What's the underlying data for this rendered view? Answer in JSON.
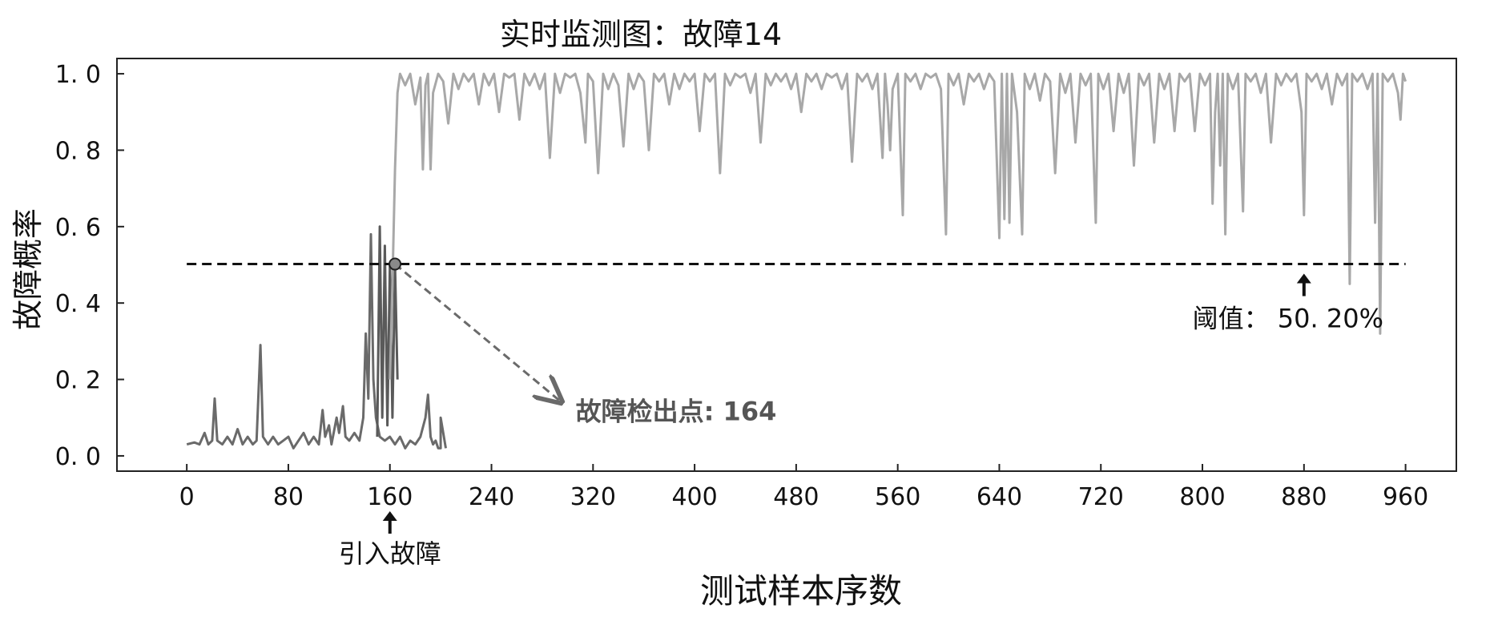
{
  "chart_data": {
    "type": "line",
    "title": "实时监测图：故障14",
    "xlabel": "测试样本序数",
    "ylabel": "故障概率",
    "xlim": [
      -55,
      1000
    ],
    "ylim": [
      -0.04,
      1.04
    ],
    "grid": false,
    "x_ticks": [
      0,
      80,
      160,
      240,
      320,
      400,
      480,
      560,
      640,
      720,
      800,
      880,
      960
    ],
    "y_ticks": [
      0.0,
      0.2,
      0.4,
      0.6,
      0.8,
      1.0
    ],
    "y_tick_labels": [
      "0. 0",
      "0. 2",
      "0. 4",
      "0. 6",
      "0. 8",
      "1. 0"
    ],
    "threshold": {
      "value": 0.502,
      "x_range": [
        0,
        960
      ],
      "label": "阈值： 50. 20%",
      "arrow_x": 880
    },
    "fault_injection": {
      "x": 160,
      "label": "引入故障"
    },
    "detection": {
      "x": 164,
      "y": 0.502,
      "label": "故障检出点: 164",
      "label_x": 300,
      "label_y": 0.12
    },
    "series": [
      {
        "segment": "before-fault",
        "color": "#6a6a6a",
        "points": [
          [
            0,
            0.03
          ],
          [
            6,
            0.035
          ],
          [
            10,
            0.03
          ],
          [
            14,
            0.06
          ],
          [
            17,
            0.03
          ],
          [
            20,
            0.04
          ],
          [
            22,
            0.15
          ],
          [
            24,
            0.04
          ],
          [
            28,
            0.03
          ],
          [
            32,
            0.05
          ],
          [
            36,
            0.03
          ],
          [
            40,
            0.07
          ],
          [
            44,
            0.03
          ],
          [
            48,
            0.05
          ],
          [
            52,
            0.03
          ],
          [
            55,
            0.04
          ],
          [
            58,
            0.29
          ],
          [
            60,
            0.05
          ],
          [
            64,
            0.03
          ],
          [
            68,
            0.05
          ],
          [
            72,
            0.03
          ],
          [
            76,
            0.04
          ],
          [
            80,
            0.05
          ],
          [
            84,
            0.02
          ],
          [
            88,
            0.04
          ],
          [
            92,
            0.06
          ],
          [
            96,
            0.03
          ],
          [
            100,
            0.05
          ],
          [
            104,
            0.03
          ],
          [
            107,
            0.12
          ],
          [
            109,
            0.05
          ],
          [
            112,
            0.08
          ],
          [
            114,
            0.03
          ],
          [
            118,
            0.1
          ],
          [
            120,
            0.06
          ],
          [
            123,
            0.13
          ],
          [
            125,
            0.05
          ],
          [
            128,
            0.04
          ],
          [
            132,
            0.06
          ],
          [
            136,
            0.04
          ],
          [
            139,
            0.1
          ],
          [
            141,
            0.32
          ],
          [
            143,
            0.15
          ],
          [
            145,
            0.58
          ],
          [
            147,
            0.2
          ],
          [
            149,
            0.1
          ],
          [
            152,
            0.05
          ],
          [
            156,
            0.04
          ],
          [
            160,
            0.05
          ],
          [
            164,
            0.03
          ],
          [
            168,
            0.05
          ],
          [
            172,
            0.02
          ],
          [
            176,
            0.04
          ],
          [
            180,
            0.03
          ],
          [
            184,
            0.05
          ],
          [
            188,
            0.1
          ],
          [
            190,
            0.16
          ],
          [
            192,
            0.05
          ],
          [
            194,
            0.03
          ],
          [
            196,
            0.04
          ],
          [
            198,
            0.02
          ],
          [
            200,
            0.02
          ],
          [
            200,
            0.1
          ],
          [
            202,
            0.06
          ],
          [
            204,
            0.02
          ]
        ]
      },
      {
        "segment": "dense-segment",
        "color": "#5a5a5a",
        "points": [
          [
            150,
            0.05
          ],
          [
            152,
            0.6
          ],
          [
            154,
            0.1
          ],
          [
            156,
            0.55
          ],
          [
            158,
            0.08
          ],
          [
            160,
            0.5
          ],
          [
            162,
            0.1
          ],
          [
            164,
            0.5
          ],
          [
            166,
            0.2
          ]
        ]
      },
      {
        "segment": "after-fault",
        "color": "#a8a8a8",
        "points": [
          [
            160,
            0.2
          ],
          [
            162,
            0.45
          ],
          [
            164,
            0.75
          ],
          [
            166,
            0.95
          ],
          [
            168,
            1.0
          ],
          [
            172,
            0.97
          ],
          [
            176,
            1.0
          ],
          [
            180,
            0.92
          ],
          [
            184,
            0.99
          ],
          [
            186,
            0.75
          ],
          [
            188,
            0.97
          ],
          [
            190,
            1.0
          ],
          [
            192,
            0.75
          ],
          [
            194,
            0.95
          ],
          [
            198,
            1.0
          ],
          [
            202,
            0.98
          ],
          [
            206,
            0.87
          ],
          [
            210,
            1.0
          ],
          [
            214,
            0.96
          ],
          [
            218,
            1.0
          ],
          [
            222,
            0.98
          ],
          [
            226,
            1.0
          ],
          [
            230,
            0.92
          ],
          [
            234,
            1.0
          ],
          [
            238,
            0.97
          ],
          [
            242,
            1.0
          ],
          [
            246,
            0.9
          ],
          [
            250,
            1.0
          ],
          [
            254,
            0.99
          ],
          [
            258,
            1.0
          ],
          [
            262,
            0.88
          ],
          [
            266,
            1.0
          ],
          [
            270,
            0.97
          ],
          [
            274,
            1.0
          ],
          [
            278,
            0.96
          ],
          [
            282,
            1.0
          ],
          [
            286,
            0.78
          ],
          [
            290,
            1.0
          ],
          [
            294,
            0.95
          ],
          [
            298,
            1.0
          ],
          [
            302,
            0.99
          ],
          [
            306,
            1.0
          ],
          [
            310,
            0.95
          ],
          [
            314,
            0.82
          ],
          [
            316,
            1.0
          ],
          [
            320,
            0.98
          ],
          [
            324,
            0.74
          ],
          [
            328,
            1.0
          ],
          [
            332,
            0.96
          ],
          [
            336,
            1.0
          ],
          [
            340,
            0.97
          ],
          [
            344,
            0.81
          ],
          [
            348,
            1.0
          ],
          [
            352,
            0.96
          ],
          [
            356,
            1.0
          ],
          [
            360,
            0.98
          ],
          [
            364,
            0.8
          ],
          [
            368,
            1.0
          ],
          [
            372,
            0.98
          ],
          [
            376,
            1.0
          ],
          [
            380,
            0.92
          ],
          [
            384,
            1.0
          ],
          [
            388,
            0.96
          ],
          [
            392,
            1.0
          ],
          [
            396,
            0.98
          ],
          [
            400,
            1.0
          ],
          [
            404,
            0.85
          ],
          [
            408,
            1.0
          ],
          [
            412,
            0.98
          ],
          [
            416,
            1.0
          ],
          [
            420,
            0.74
          ],
          [
            424,
            1.0
          ],
          [
            428,
            0.97
          ],
          [
            432,
            1.0
          ],
          [
            436,
            0.99
          ],
          [
            440,
            1.0
          ],
          [
            444,
            0.95
          ],
          [
            448,
            1.0
          ],
          [
            452,
            0.82
          ],
          [
            456,
            1.0
          ],
          [
            460,
            0.97
          ],
          [
            464,
            1.0
          ],
          [
            468,
            0.98
          ],
          [
            472,
            1.0
          ],
          [
            476,
            0.96
          ],
          [
            480,
            1.0
          ],
          [
            484,
            0.9
          ],
          [
            488,
            1.0
          ],
          [
            492,
            0.98
          ],
          [
            496,
            1.0
          ],
          [
            500,
            0.96
          ],
          [
            504,
            1.0
          ],
          [
            508,
            0.99
          ],
          [
            512,
            1.0
          ],
          [
            516,
            0.96
          ],
          [
            520,
            1.0
          ],
          [
            524,
            0.77
          ],
          [
            528,
            1.0
          ],
          [
            532,
            0.98
          ],
          [
            536,
            1.0
          ],
          [
            540,
            0.96
          ],
          [
            544,
            1.0
          ],
          [
            548,
            0.78
          ],
          [
            550,
            1.0
          ],
          [
            552,
            0.92
          ],
          [
            554,
            0.8
          ],
          [
            556,
            0.96
          ],
          [
            560,
            1.0
          ],
          [
            564,
            0.63
          ],
          [
            566,
            1.0
          ],
          [
            570,
            0.98
          ],
          [
            574,
            1.0
          ],
          [
            578,
            0.96
          ],
          [
            582,
            1.0
          ],
          [
            586,
            0.99
          ],
          [
            590,
            1.0
          ],
          [
            594,
            0.96
          ],
          [
            598,
            0.58
          ],
          [
            600,
            1.0
          ],
          [
            604,
            0.97
          ],
          [
            608,
            1.0
          ],
          [
            612,
            0.92
          ],
          [
            616,
            1.0
          ],
          [
            620,
            0.98
          ],
          [
            624,
            1.0
          ],
          [
            628,
            0.96
          ],
          [
            632,
            1.0
          ],
          [
            636,
            0.98
          ],
          [
            640,
            0.57
          ],
          [
            642,
            1.0
          ],
          [
            644,
            0.62
          ],
          [
            646,
            1.0
          ],
          [
            648,
            0.61
          ],
          [
            650,
            1.0
          ],
          [
            654,
            0.9
          ],
          [
            658,
            0.58
          ],
          [
            660,
            1.0
          ],
          [
            664,
            0.96
          ],
          [
            668,
            1.0
          ],
          [
            672,
            0.93
          ],
          [
            676,
            1.0
          ],
          [
            680,
            0.98
          ],
          [
            684,
            0.74
          ],
          [
            688,
            1.0
          ],
          [
            692,
            0.95
          ],
          [
            696,
            1.0
          ],
          [
            700,
            0.82
          ],
          [
            704,
            1.0
          ],
          [
            708,
            0.97
          ],
          [
            712,
            1.0
          ],
          [
            716,
            0.61
          ],
          [
            718,
            1.0
          ],
          [
            722,
            0.96
          ],
          [
            726,
            1.0
          ],
          [
            730,
            0.85
          ],
          [
            734,
            1.0
          ],
          [
            738,
            0.95
          ],
          [
            742,
            1.0
          ],
          [
            746,
            0.76
          ],
          [
            750,
            1.0
          ],
          [
            754,
            0.97
          ],
          [
            758,
            1.0
          ],
          [
            762,
            0.82
          ],
          [
            766,
            1.0
          ],
          [
            770,
            0.96
          ],
          [
            774,
            1.0
          ],
          [
            778,
            0.85
          ],
          [
            782,
            1.0
          ],
          [
            786,
            0.98
          ],
          [
            790,
            1.0
          ],
          [
            794,
            0.85
          ],
          [
            798,
            1.0
          ],
          [
            802,
            0.97
          ],
          [
            806,
            1.0
          ],
          [
            808,
            0.66
          ],
          [
            810,
            0.9
          ],
          [
            812,
            1.0
          ],
          [
            814,
            0.76
          ],
          [
            816,
            1.0
          ],
          [
            818,
            0.58
          ],
          [
            820,
            1.0
          ],
          [
            824,
            0.96
          ],
          [
            828,
            1.0
          ],
          [
            832,
            0.64
          ],
          [
            834,
            1.0
          ],
          [
            838,
            0.98
          ],
          [
            842,
            1.0
          ],
          [
            846,
            0.95
          ],
          [
            850,
            1.0
          ],
          [
            854,
            0.82
          ],
          [
            858,
            1.0
          ],
          [
            862,
            0.97
          ],
          [
            866,
            1.0
          ],
          [
            870,
            0.98
          ],
          [
            874,
            1.0
          ],
          [
            878,
            0.9
          ],
          [
            880,
            0.63
          ],
          [
            882,
            1.0
          ],
          [
            886,
            0.98
          ],
          [
            890,
            1.0
          ],
          [
            894,
            0.96
          ],
          [
            898,
            1.0
          ],
          [
            902,
            0.92
          ],
          [
            906,
            1.0
          ],
          [
            910,
            0.97
          ],
          [
            914,
            1.0
          ],
          [
            916,
            0.45
          ],
          [
            918,
            1.0
          ],
          [
            922,
            0.98
          ],
          [
            926,
            1.0
          ],
          [
            930,
            0.96
          ],
          [
            934,
            1.0
          ],
          [
            936,
            0.61
          ],
          [
            938,
            1.0
          ],
          [
            940,
            0.32
          ],
          [
            942,
            1.0
          ],
          [
            946,
            0.98
          ],
          [
            950,
            1.0
          ],
          [
            954,
            0.95
          ],
          [
            956,
            0.88
          ],
          [
            958,
            1.0
          ],
          [
            960,
            0.98
          ]
        ]
      }
    ]
  }
}
